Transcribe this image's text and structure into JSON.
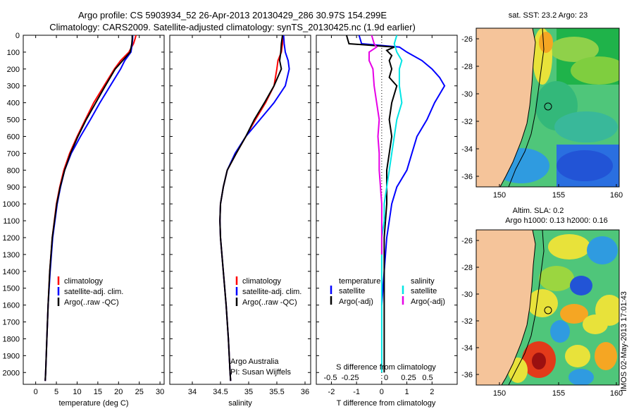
{
  "header": {
    "line1": "Argo profile: CS 5903934_52 26-Apr-2013 20130429_286 30.97S 154.299E",
    "line2": "Climatology: CARS2009. Satellite-adjusted climatology: synTS_20130425.nc (1.9d earlier)"
  },
  "depth_ticks": [
    "0",
    "100",
    "200",
    "300",
    "400",
    "500",
    "600",
    "700",
    "800",
    "900",
    "1000",
    "1100",
    "1200",
    "1300",
    "1400",
    "1500",
    "1600",
    "1700",
    "1800",
    "1900",
    "2000"
  ],
  "colors": {
    "climatology": "#ff0000",
    "satellite": "#0000ff",
    "argo": "#000000",
    "sal_sat": "#00e5e5",
    "sal_argo": "#e600e6",
    "land": "#f5c49a"
  },
  "chart_data": [
    {
      "type": "line",
      "xlabel": "temperature (deg C)",
      "x_ticks": [
        "0",
        "5",
        "10",
        "15",
        "20",
        "25",
        "30"
      ],
      "xlim": [
        -3,
        31
      ],
      "ylim": [
        2070,
        0
      ],
      "legend": [
        "climatology",
        "satellite-adj. clim.",
        "Argo(..raw -QC)"
      ],
      "series": [
        {
          "name": "climatology",
          "depth": [
            0,
            20,
            50,
            100,
            150,
            200,
            300,
            400,
            500,
            600,
            700,
            800,
            900,
            1000,
            1200,
            1400,
            1600,
            1800,
            2000,
            2050
          ],
          "values": [
            24.2,
            24.0,
            23.6,
            22.5,
            20.5,
            19.0,
            16.5,
            14.0,
            12.0,
            10.0,
            8.2,
            6.8,
            5.8,
            5.0,
            4.0,
            3.4,
            3.0,
            2.7,
            2.4,
            2.3
          ]
        },
        {
          "name": "satellite-adj. clim.",
          "depth": [
            0,
            20,
            50,
            100,
            150,
            200,
            300,
            400,
            500,
            600,
            700,
            800,
            900,
            1000,
            1200,
            1400,
            1600,
            1800,
            2000,
            2050
          ],
          "values": [
            23.4,
            23.4,
            23.3,
            23.0,
            21.5,
            20.5,
            18.0,
            15.5,
            13.2,
            10.8,
            8.6,
            7.0,
            6.0,
            5.2,
            4.1,
            3.5,
            3.0,
            2.7,
            2.4,
            2.3
          ]
        },
        {
          "name": "Argo(..raw -QC)",
          "depth": [
            0,
            20,
            50,
            100,
            150,
            200,
            300,
            400,
            500,
            600,
            700,
            800,
            900,
            1000,
            1200,
            1400,
            1600,
            1800,
            2000,
            2050
          ],
          "values": [
            23.3,
            23.3,
            23.2,
            22.8,
            21.0,
            19.2,
            16.8,
            14.5,
            12.2,
            10.2,
            8.4,
            7.0,
            5.9,
            5.1,
            4.0,
            3.4,
            3.0,
            2.7,
            2.4,
            2.3
          ]
        }
      ]
    },
    {
      "type": "line",
      "xlabel": "salinity",
      "x_ticks": [
        "34",
        "34.5",
        "35",
        "35.5",
        "36"
      ],
      "xlim": [
        33.6,
        36.1
      ],
      "ylim": [
        2070,
        0
      ],
      "legend": [
        "climatology",
        "satellite-adj. clim.",
        "Argo(..raw -QC)"
      ],
      "annotation": [
        "Argo Australia",
        "PI: Susan Wijffels"
      ],
      "series": [
        {
          "name": "climatology",
          "depth": [
            0,
            50,
            100,
            150,
            200,
            300,
            400,
            500,
            600,
            700,
            800,
            900,
            1000,
            1100,
            1200,
            1400,
            1600,
            1800,
            2000,
            2050
          ],
          "values": [
            35.6,
            35.6,
            35.58,
            35.52,
            35.5,
            35.45,
            35.3,
            35.12,
            34.95,
            34.78,
            34.62,
            34.55,
            34.5,
            34.49,
            34.5,
            34.55,
            34.6,
            34.64,
            34.67,
            34.68
          ]
        },
        {
          "name": "satellite-adj. clim.",
          "depth": [
            0,
            50,
            100,
            150,
            200,
            300,
            400,
            500,
            600,
            700,
            800,
            900,
            1000,
            1100,
            1200,
            1400,
            1600,
            1800,
            2000,
            2050
          ],
          "values": [
            35.62,
            35.63,
            35.65,
            35.7,
            35.72,
            35.65,
            35.45,
            35.2,
            34.95,
            34.76,
            34.62,
            34.55,
            34.5,
            34.49,
            34.5,
            34.55,
            34.6,
            34.64,
            34.67,
            34.68
          ]
        },
        {
          "name": "Argo(..raw -QC)",
          "depth": [
            0,
            50,
            100,
            150,
            200,
            300,
            400,
            500,
            600,
            700,
            800,
            900,
            1000,
            1100,
            1200,
            1400,
            1600,
            1800,
            2000,
            2050
          ],
          "values": [
            35.6,
            35.58,
            35.57,
            35.55,
            35.58,
            35.45,
            35.28,
            35.1,
            34.95,
            34.78,
            34.62,
            34.55,
            34.5,
            34.49,
            34.5,
            34.55,
            34.6,
            34.64,
            34.67,
            34.68
          ]
        }
      ]
    },
    {
      "type": "line",
      "xlabel": "T difference from climatology",
      "x2label": "S difference from climatology",
      "x_ticks": [
        "-2",
        "-1",
        "0",
        "1",
        "2"
      ],
      "x2_ticks": [
        "-0.5",
        "-0.25",
        "0",
        "0.25",
        "0.5"
      ],
      "xlim": [
        -2.6,
        3.0
      ],
      "ylim": [
        2070,
        0
      ],
      "legend_headers": [
        "temperature",
        "salinity"
      ],
      "legend": [
        "satellite",
        "Argo(-adj)",
        "satellite",
        "Argo(-adj)"
      ],
      "series": [
        {
          "name": "satellite",
          "depth": [
            0,
            50,
            70,
            100,
            150,
            200,
            250,
            300,
            350,
            400,
            500,
            600,
            700,
            800,
            900,
            1000,
            1100,
            1200,
            1400,
            1600
          ],
          "values": [
            -0.9,
            -0.8,
            0.7,
            1.0,
            1.6,
            2.0,
            2.3,
            2.5,
            2.3,
            2.1,
            1.8,
            1.4,
            1.2,
            1.0,
            0.6,
            0.4,
            0.3,
            0.2,
            0.1,
            0.0
          ]
        },
        {
          "name": "Argo(-adj)",
          "depth": [
            0,
            50,
            70,
            90,
            120,
            150,
            200,
            250,
            300,
            400,
            500,
            600,
            700,
            800,
            1000,
            1200,
            1400,
            1600,
            2000
          ],
          "values": [
            -1.4,
            -1.3,
            0.5,
            0.2,
            0.4,
            0.3,
            0.4,
            0.3,
            0.6,
            0.4,
            0.3,
            0.4,
            0.3,
            0.2,
            0.2,
            0.1,
            0.1,
            0.1,
            0.1
          ]
        },
        {
          "name": "satellite",
          "depth": [
            0,
            50,
            100,
            150,
            200,
            300,
            400,
            500,
            600,
            700,
            800,
            900,
            1000,
            1100,
            1200,
            1400,
            1600,
            2000
          ],
          "values": [
            0.6,
            0.5,
            0.6,
            0.8,
            0.7,
            0.7,
            0.8,
            0.6,
            0.5,
            0.4,
            0.3,
            0.2,
            0.1,
            0.1,
            0.0,
            0.0,
            0.0,
            0.0
          ]
        },
        {
          "name": "Argo(-adj)",
          "depth": [
            0,
            50,
            70,
            100,
            150,
            200,
            300,
            400,
            500,
            600,
            700,
            800,
            900,
            1000,
            1100,
            1200,
            1300
          ],
          "values": [
            -0.4,
            -0.3,
            -0.2,
            -0.5,
            -0.5,
            -0.35,
            -0.3,
            -0.2,
            -0.1,
            -0.15,
            -0.1,
            -0.1,
            -0.05,
            0.0,
            0.0,
            0.0,
            0.0
          ]
        }
      ]
    }
  ],
  "maps": {
    "sst": {
      "title": "sat. SST: 23.2 Argo: 23"
    },
    "sla": {
      "title1": "Altim. SLA: 0.2",
      "title2": "Argo h1000: 0.13 h2000: 0.16"
    },
    "y_ticks": [
      "-26",
      "-28",
      "-30",
      "-32",
      "-34",
      "-36"
    ],
    "x_ticks": [
      "150",
      "155",
      "160"
    ]
  },
  "stamp": "IMOS 02-May-2013 17:01:43"
}
